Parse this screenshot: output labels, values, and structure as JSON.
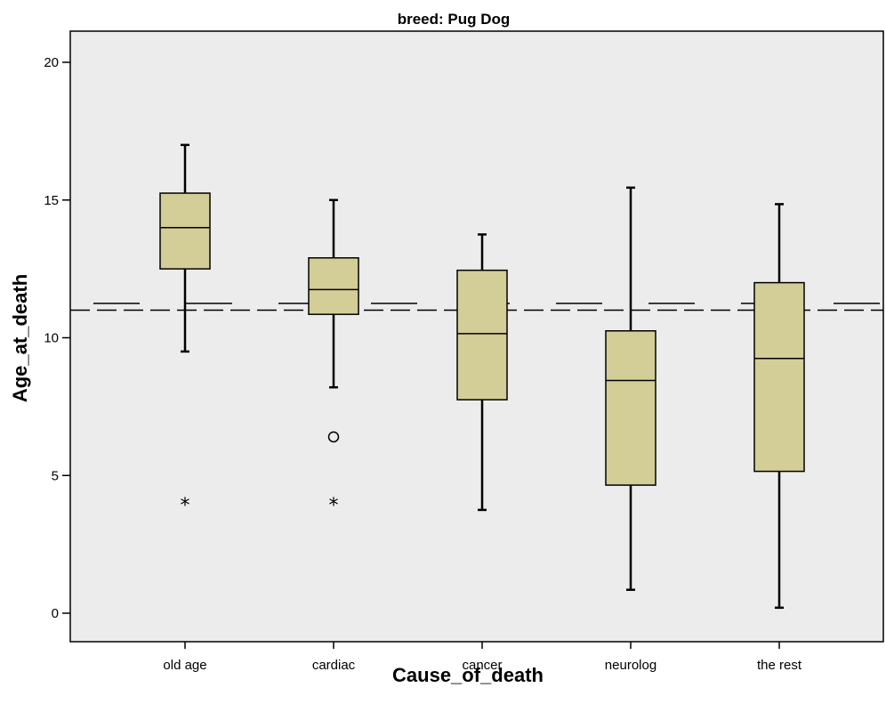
{
  "chart_data": {
    "type": "box",
    "title": "breed: Pug Dog",
    "xlabel": "Cause_of_death",
    "ylabel": "Age_at_death",
    "ylim": [
      -1.1,
      21.2
    ],
    "yticks": [
      0,
      5,
      10,
      15,
      20
    ],
    "categories": [
      "old age",
      "cardiac",
      "cancer",
      "neurolog",
      "the rest"
    ],
    "boxes": [
      {
        "category": "old age",
        "whisker_low": 9.5,
        "q1": 12.5,
        "median": 14.0,
        "q3": 15.25,
        "whisker_high": 17.0,
        "outliers": [],
        "extremes": [
          4.0
        ]
      },
      {
        "category": "cardiac",
        "whisker_low": 8.2,
        "q1": 10.85,
        "median": 11.75,
        "q3": 12.9,
        "whisker_high": 15.0,
        "outliers": [
          6.4
        ],
        "extremes": [
          4.0
        ]
      },
      {
        "category": "cancer",
        "whisker_low": 3.75,
        "q1": 7.75,
        "median": 10.15,
        "q3": 12.45,
        "whisker_high": 13.75,
        "outliers": [],
        "extremes": []
      },
      {
        "category": "neurolog",
        "whisker_low": 0.85,
        "q1": 4.65,
        "median": 8.45,
        "q3": 10.25,
        "whisker_high": 15.45,
        "outliers": [],
        "extremes": []
      },
      {
        "category": "the rest",
        "whisker_low": 0.2,
        "q1": 5.15,
        "median": 9.25,
        "q3": 12.0,
        "whisker_high": 14.85,
        "outliers": [],
        "extremes": []
      }
    ],
    "reference_lines": [
      {
        "y": 11.0,
        "style": "long-dash"
      },
      {
        "y": 11.25,
        "style": "segmented-dash"
      }
    ],
    "colors": {
      "box_fill": "#d3cd98",
      "plot_background": "#ececec",
      "stroke": "#000000"
    },
    "grid": false
  }
}
